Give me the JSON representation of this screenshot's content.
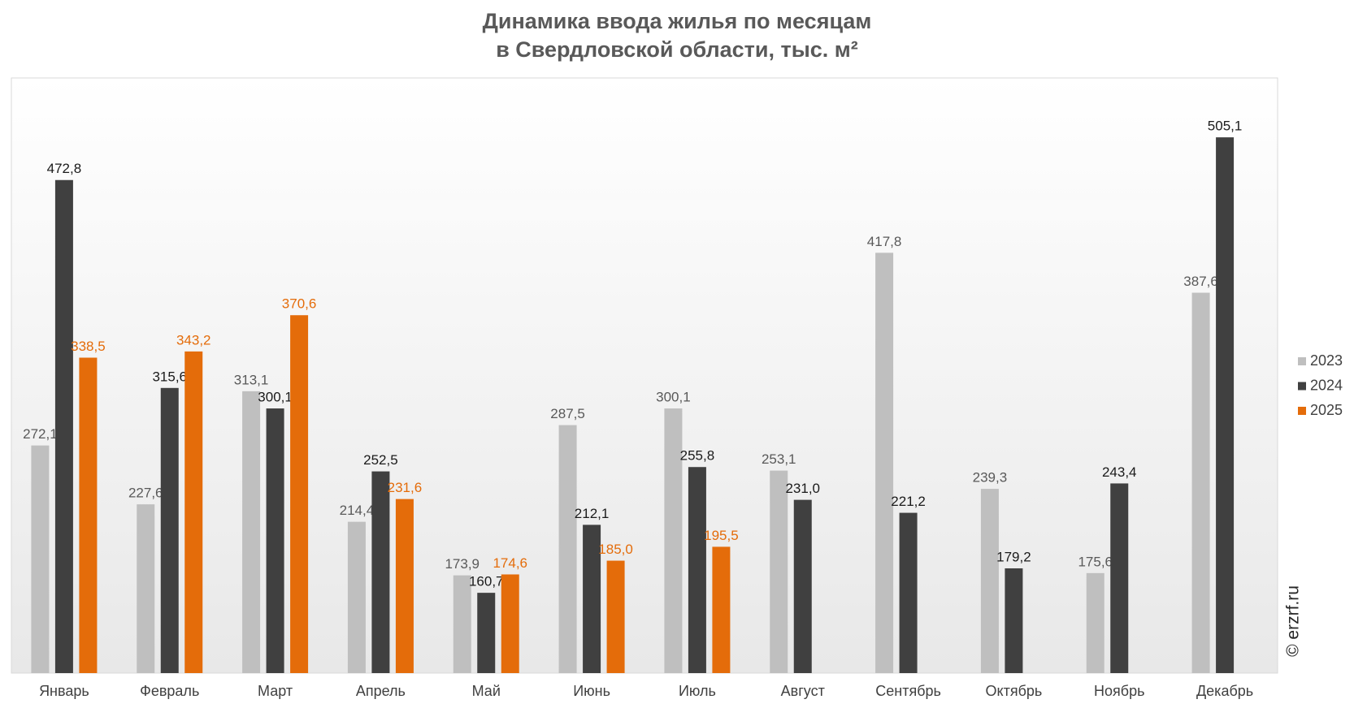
{
  "chart_data": {
    "type": "bar",
    "title": [
      "Динамика ввода жилья по месяцам",
      "в Свердловской области, тыс. м²"
    ],
    "watermark": "© erzrf.ru",
    "categories": [
      "Январь",
      "Февраль",
      "Март",
      "Апрель",
      "Май",
      "Июнь",
      "Июль",
      "Август",
      "Сентябрь",
      "Октябрь",
      "Ноябрь",
      "Декабрь"
    ],
    "series": [
      {
        "name": "2023",
        "color": "#bfbfbf",
        "label_color": "#595959",
        "values": [
          272.1,
          227.6,
          313.1,
          214.4,
          173.9,
          287.5,
          300.1,
          253.1,
          417.8,
          239.3,
          175.6,
          387.6
        ],
        "value_labels": [
          "272,1",
          "227,6",
          "313,1",
          "214,4",
          "173,9",
          "287,5",
          "300,1",
          "253,1",
          "417,8",
          "239,3",
          "175,6",
          "387,6"
        ]
      },
      {
        "name": "2024",
        "color": "#404040",
        "label_color": "#1a1a1a",
        "values": [
          472.8,
          315.6,
          300.1,
          252.5,
          160.7,
          212.1,
          255.8,
          231.0,
          221.2,
          179.2,
          243.4,
          505.1
        ],
        "value_labels": [
          "472,8",
          "315,6",
          "300,1",
          "252,5",
          "160,7",
          "212,1",
          "255,8",
          "231,0",
          "221,2",
          "179,2",
          "243,4",
          "505,1"
        ]
      },
      {
        "name": "2025",
        "color": "#e46c0a",
        "label_color": "#e46c0a",
        "values": [
          338.5,
          343.2,
          370.6,
          231.6,
          174.6,
          185.0,
          195.5,
          null,
          null,
          null,
          null,
          null
        ],
        "value_labels": [
          "338,5",
          "343,2",
          "370,6",
          "231,6",
          "174,6",
          "185,0",
          "195,5",
          null,
          null,
          null,
          null,
          null
        ]
      }
    ],
    "ylim": [
      100,
      550
    ],
    "legend": "right"
  }
}
